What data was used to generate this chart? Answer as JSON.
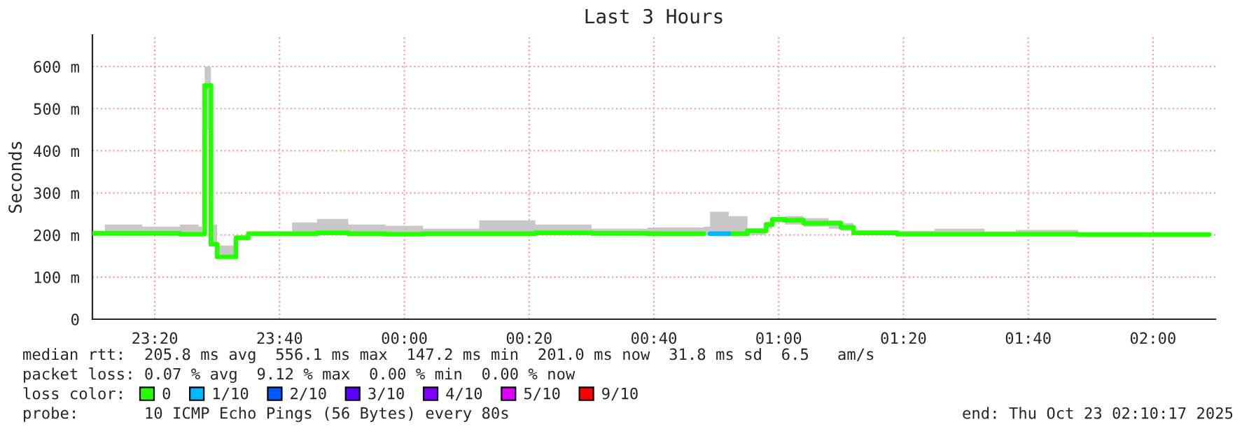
{
  "chart_data": {
    "type": "step",
    "title": "Last 3 Hours",
    "ylabel": "Seconds",
    "legend_title": "loss color:",
    "x": [
      "2025-10-22T23:10",
      "2025-10-22T23:12",
      "2025-10-22T23:18",
      "2025-10-22T23:24",
      "2025-10-22T23:27",
      "2025-10-22T23:28",
      "2025-10-22T23:29",
      "2025-10-22T23:30",
      "2025-10-22T23:33",
      "2025-10-22T23:35",
      "2025-10-22T23:42",
      "2025-10-22T23:46",
      "2025-10-22T23:51",
      "2025-10-22T23:57",
      "2025-10-23T00:03",
      "2025-10-23T00:12",
      "2025-10-23T00:21",
      "2025-10-23T00:30",
      "2025-10-23T00:39",
      "2025-10-23T00:48",
      "2025-10-23T00:49",
      "2025-10-23T00:52",
      "2025-10-23T00:55",
      "2025-10-23T00:58",
      "2025-10-23T00:59",
      "2025-10-23T01:01",
      "2025-10-23T01:04",
      "2025-10-23T01:08",
      "2025-10-23T01:10",
      "2025-10-23T01:12",
      "2025-10-23T01:19",
      "2025-10-23T01:25",
      "2025-10-23T01:33",
      "2025-10-23T01:38",
      "2025-10-23T01:48",
      "2025-10-23T02:09"
    ],
    "series": [
      {
        "name": "0",
        "color": "#26ff00",
        "values": [
          204,
          204,
          204,
          202,
          202,
          555,
          178,
          148,
          193,
          203,
          203,
          205,
          203,
          202,
          203,
          203,
          205,
          204,
          203,
          203,
          null,
          203,
          210,
          225,
          237,
          235,
          228,
          228,
          218,
          205,
          202,
          202,
          202,
          202,
          201,
          201
        ],
        "lower": [
          200,
          200,
          200,
          200,
          200,
          450,
          175,
          145,
          190,
          200,
          200,
          200,
          200,
          200,
          200,
          200,
          200,
          200,
          200,
          200,
          200,
          200,
          200,
          215,
          230,
          225,
          220,
          215,
          210,
          200,
          200,
          200,
          200,
          200,
          200,
          200
        ],
        "upper": [
          210,
          225,
          220,
          225,
          220,
          600,
          225,
          175,
          200,
          205,
          230,
          238,
          225,
          222,
          215,
          235,
          225,
          215,
          218,
          220,
          255,
          245,
          212,
          228,
          240,
          245,
          240,
          235,
          228,
          210,
          210,
          215,
          208,
          212,
          205,
          202
        ]
      },
      {
        "name": "1/10",
        "color": "#00b8ff",
        "values": [
          null,
          null,
          null,
          null,
          null,
          null,
          null,
          null,
          null,
          null,
          null,
          null,
          null,
          null,
          null,
          null,
          null,
          null,
          null,
          null,
          203,
          203,
          null,
          null,
          null,
          null,
          null,
          null,
          null,
          null,
          null,
          null,
          null,
          null,
          null,
          null
        ]
      },
      {
        "name": "2/10",
        "color": "#0059ff",
        "values": [
          null,
          null,
          null,
          null,
          null,
          null,
          null,
          null,
          null,
          null,
          null,
          null,
          null,
          null,
          null,
          null,
          null,
          null,
          null,
          null,
          null,
          null,
          null,
          null,
          null,
          null,
          null,
          null,
          null,
          null,
          null,
          null,
          null,
          null,
          null,
          null
        ]
      },
      {
        "name": "3/10",
        "color": "#5e00ff",
        "values": [
          null,
          null,
          null,
          null,
          null,
          null,
          null,
          null,
          null,
          null,
          null,
          null,
          null,
          null,
          null,
          null,
          null,
          null,
          null,
          null,
          null,
          null,
          null,
          null,
          null,
          null,
          null,
          null,
          null,
          null,
          null,
          null,
          null,
          null,
          null,
          null
        ]
      },
      {
        "name": "4/10",
        "color": "#7e00ff",
        "values": [
          null,
          null,
          null,
          null,
          null,
          null,
          null,
          null,
          null,
          null,
          null,
          null,
          null,
          null,
          null,
          null,
          null,
          null,
          null,
          null,
          null,
          null,
          null,
          null,
          null,
          null,
          null,
          null,
          null,
          null,
          null,
          null,
          null,
          null,
          null,
          null
        ]
      },
      {
        "name": "5/10",
        "color": "#dd00ff",
        "values": [
          null,
          null,
          null,
          null,
          null,
          null,
          null,
          null,
          null,
          null,
          null,
          null,
          null,
          null,
          null,
          null,
          null,
          null,
          null,
          null,
          null,
          null,
          null,
          null,
          null,
          null,
          null,
          null,
          null,
          null,
          null,
          null,
          null,
          null,
          null,
          null
        ]
      },
      {
        "name": "9/10",
        "color": "#ff0000",
        "values": [
          null,
          null,
          null,
          null,
          null,
          null,
          null,
          null,
          null,
          null,
          null,
          null,
          null,
          null,
          null,
          null,
          null,
          null,
          null,
          null,
          null,
          null,
          null,
          null,
          null,
          null,
          null,
          null,
          null,
          null,
          null,
          null,
          null,
          null,
          null,
          null
        ]
      }
    ],
    "xlim": [
      "2025-10-22T23:10",
      "2025-10-23T02:10"
    ],
    "xticks": [
      {
        "value": "2025-10-22T23:20",
        "label": "23:20"
      },
      {
        "value": "2025-10-22T23:40",
        "label": "23:40"
      },
      {
        "value": "2025-10-23T00:00",
        "label": "00:00"
      },
      {
        "value": "2025-10-23T00:20",
        "label": "00:20"
      },
      {
        "value": "2025-10-23T00:40",
        "label": "00:40"
      },
      {
        "value": "2025-10-23T01:00",
        "label": "01:00"
      },
      {
        "value": "2025-10-23T01:20",
        "label": "01:20"
      },
      {
        "value": "2025-10-23T01:40",
        "label": "01:40"
      },
      {
        "value": "2025-10-23T02:00",
        "label": "02:00"
      }
    ],
    "ylim": [
      0,
      675
    ],
    "yticks": [
      0,
      {
        "value": 100,
        "label": "100 m"
      },
      {
        "value": 200,
        "label": "200 m"
      },
      {
        "value": 300,
        "label": "300 m"
      },
      {
        "value": 400,
        "label": "400 m"
      },
      {
        "value": 500,
        "label": "500 m"
      },
      {
        "value": 600,
        "label": "600 m"
      }
    ],
    "grid": true,
    "legend": "bottom",
    "annotations": [
      "median rtt:  205.8 ms avg  556.1 ms max  147.2 ms min  201.0 ms now  31.8 ms sd  6.5   am/s",
      "packet loss: 0.07 % avg  9.12 % max  0.00 % min  0.00 % now",
      "probe:       10 ICMP Echo Pings (56 Bytes) every 80s",
      "end: Thu Oct 23 02:10:17 2025"
    ]
  }
}
